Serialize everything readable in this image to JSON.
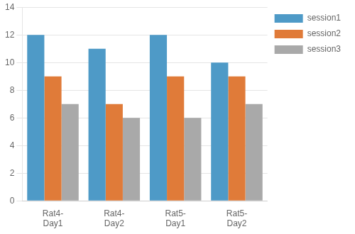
{
  "chart_data": {
    "type": "bar",
    "categories": [
      "Rat4-\nDay1",
      "Rat4-\nDay2",
      "Rat5-\nDay1",
      "Rat5-\nDay2"
    ],
    "series": [
      {
        "name": "session1",
        "color": "#4E9AC7",
        "values": [
          12,
          11,
          12,
          10
        ]
      },
      {
        "name": "session2",
        "color": "#E07B39",
        "values": [
          9,
          7,
          9,
          9
        ]
      },
      {
        "name": "session3",
        "color": "#A9A9A9",
        "values": [
          7,
          6,
          6,
          7
        ]
      }
    ],
    "ylim": [
      0,
      14
    ],
    "yticks": [
      0,
      2,
      4,
      6,
      8,
      10,
      12,
      14
    ],
    "grid": true,
    "legend": "right"
  }
}
